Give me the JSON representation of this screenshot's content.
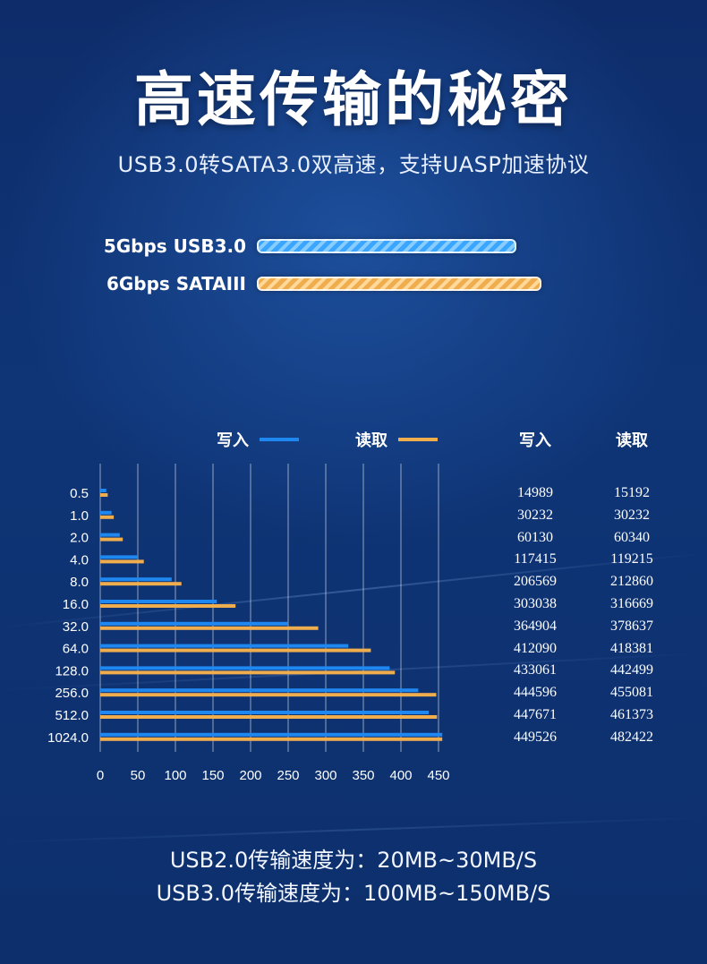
{
  "header": {
    "title": "高速传输的秘密",
    "subtitle": "USB3.0转SATA3.0双高速，支持UASP加速协议"
  },
  "interfaces": [
    {
      "label": "5Gbps USB3.0",
      "color": "#3aa6ff"
    },
    {
      "label": "6Gbps SATAIII",
      "color": "#f0ad4e"
    }
  ],
  "legend": {
    "write_label": "写入",
    "read_label": "读取"
  },
  "table": {
    "write_header": "写入",
    "read_header": "读取",
    "rows": [
      {
        "write": "14989",
        "read": "15192"
      },
      {
        "write": "30232",
        "read": "30232"
      },
      {
        "write": "60130",
        "read": "60340"
      },
      {
        "write": "117415",
        "read": "119215"
      },
      {
        "write": "206569",
        "read": "212860"
      },
      {
        "write": "303038",
        "read": "316669"
      },
      {
        "write": "364904",
        "read": "378637"
      },
      {
        "write": "412090",
        "read": "418381"
      },
      {
        "write": "433061",
        "read": "442499"
      },
      {
        "write": "444596",
        "read": "455081"
      },
      {
        "write": "447671",
        "read": "461373"
      },
      {
        "write": "449526",
        "read": "482422"
      }
    ]
  },
  "chart_data": {
    "type": "bar",
    "orientation": "horizontal",
    "categories": [
      "0.5",
      "1.0",
      "2.0",
      "4.0",
      "8.0",
      "16.0",
      "32.0",
      "64.0",
      "128.0",
      "256.0",
      "512.0",
      "1024.0"
    ],
    "series": [
      {
        "name": "写入",
        "color": "#1e88f0",
        "values": [
          8,
          15,
          26,
          50,
          95,
          155,
          250,
          330,
          385,
          423,
          437,
          455
        ]
      },
      {
        "name": "读取",
        "color": "#f0ad4e",
        "values": [
          10,
          18,
          30,
          58,
          108,
          180,
          290,
          360,
          392,
          447,
          448,
          455
        ]
      }
    ],
    "xticks": [
      "0",
      "50",
      "100",
      "150",
      "200",
      "250",
      "300",
      "350",
      "400",
      "450"
    ],
    "xlim": [
      0,
      450
    ],
    "grid": "vertical"
  },
  "footer": {
    "line1": "USB2.0传输速度为：20MB~30MB/S",
    "line2": "USB3.0传输速度为：100MB~150MB/S"
  }
}
